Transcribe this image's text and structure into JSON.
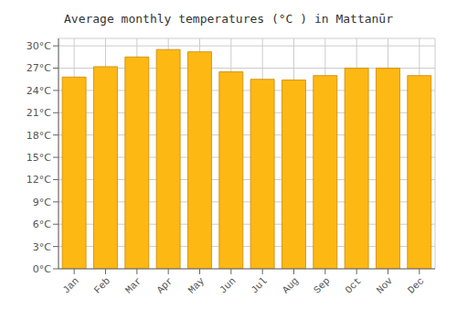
{
  "chart_data": {
    "type": "bar",
    "title": "Average monthly temperatures (°C ) in Mattanūr",
    "categories": [
      "Jan",
      "Feb",
      "Mar",
      "Apr",
      "May",
      "Jun",
      "Jul",
      "Aug",
      "Sep",
      "Oct",
      "Nov",
      "Dec"
    ],
    "values": [
      25.8,
      27.2,
      28.5,
      29.5,
      29.2,
      26.5,
      25.5,
      25.4,
      26.0,
      27.0,
      27.0,
      26.0
    ],
    "color": "#FDB813",
    "ylim": [
      0,
      31
    ],
    "yticks": [
      {
        "value": 0,
        "label": "0°C"
      },
      {
        "value": 3,
        "label": "3°C"
      },
      {
        "value": 6,
        "label": "6°C"
      },
      {
        "value": 9,
        "label": "9°C"
      },
      {
        "value": 12,
        "label": "12°C"
      },
      {
        "value": 15,
        "label": "15°C"
      },
      {
        "value": 18,
        "label": "18°C"
      },
      {
        "value": 21,
        "label": "21°C"
      },
      {
        "value": 24,
        "label": "24°C"
      },
      {
        "value": 27,
        "label": "27°C"
      },
      {
        "value": 30,
        "label": "30°C"
      }
    ],
    "grid": true
  }
}
